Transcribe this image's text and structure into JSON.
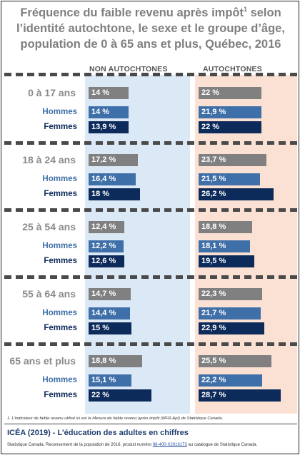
{
  "header": {
    "title_line1": "Fréquence du faible revenu après impôt",
    "title_sup": "1",
    "title_line1_end": " selon",
    "title_line2": "l’identité autochtone, le sexe et le groupe d’âge,",
    "title_line3": "population de 0 à 65 ans et plus, Québec, 2016"
  },
  "columns": {
    "non_autochtones": "NON AUTOCHTONES",
    "autochtones": "AUTOCHTONES"
  },
  "colors": {
    "total": "#808080",
    "hommes": "#3f6fa8",
    "femmes": "#0c2a5a",
    "band_non": "#dbe8f5",
    "band_aut": "#fbe1d3"
  },
  "chart_data": {
    "type": "bar",
    "categories": [
      "0 à 17 ans",
      "18 à 24 ans",
      "25 à 54 ans",
      "55 à 64 ans",
      "65 ans et plus"
    ],
    "row_labels": [
      "",
      "Hommes",
      "Femmes"
    ],
    "xlim": [
      0,
      30
    ],
    "groups": [
      {
        "label": "0 à 17 ans",
        "non_autochtones": [
          {
            "value": 14,
            "label": "14 %"
          },
          {
            "value": 14,
            "label": "14 %"
          },
          {
            "value": 13.9,
            "label": "13,9 %"
          }
        ],
        "autochtones": [
          {
            "value": 22,
            "label": "22 %"
          },
          {
            "value": 21.9,
            "label": "21,9 %"
          },
          {
            "value": 22,
            "label": "22 %"
          }
        ]
      },
      {
        "label": "18 à 24 ans",
        "non_autochtones": [
          {
            "value": 17.2,
            "label": "17,2 %"
          },
          {
            "value": 16.4,
            "label": "16,4 %"
          },
          {
            "value": 18,
            "label": "18 %"
          }
        ],
        "autochtones": [
          {
            "value": 23.7,
            "label": "23,7 %"
          },
          {
            "value": 21.5,
            "label": "21,5 %"
          },
          {
            "value": 26.2,
            "label": "26,2 %"
          }
        ]
      },
      {
        "label": "25 à 54 ans",
        "non_autochtones": [
          {
            "value": 12.4,
            "label": "12,4 %"
          },
          {
            "value": 12.2,
            "label": "12,2 %"
          },
          {
            "value": 12.6,
            "label": "12,6 %"
          }
        ],
        "autochtones": [
          {
            "value": 18.8,
            "label": "18,8 %"
          },
          {
            "value": 18.1,
            "label": "18,1 %"
          },
          {
            "value": 19.5,
            "label": "19,5 %"
          }
        ]
      },
      {
        "label": "55 à 64 ans",
        "non_autochtones": [
          {
            "value": 14.7,
            "label": "14,7 %"
          },
          {
            "value": 14.4,
            "label": "14,4 %"
          },
          {
            "value": 15,
            "label": "15 %"
          }
        ],
        "autochtones": [
          {
            "value": 22.3,
            "label": "22,3 %"
          },
          {
            "value": 21.7,
            "label": "21,7 %"
          },
          {
            "value": 22.9,
            "label": "22,9 %"
          }
        ]
      },
      {
        "label": "65 ans et plus",
        "non_autochtones": [
          {
            "value": 18.8,
            "label": "18,8 %"
          },
          {
            "value": 15.1,
            "label": "15,1 %"
          },
          {
            "value": 22,
            "label": "22 %"
          }
        ],
        "autochtones": [
          {
            "value": 25.5,
            "label": "25,5 %"
          },
          {
            "value": 22.2,
            "label": "22,2 %"
          },
          {
            "value": 28.7,
            "label": "28,7 %"
          }
        ]
      }
    ]
  },
  "footer": {
    "footnote": "1. L’indicateur de faible revenu utilisé ici est la Mesure de faible revenu après impôt (MFR-ApI) de Statistique Canada.",
    "org": "ICÉA (2019) - L’éducation des adultes en chiffres",
    "source_pre": "Statistique Canada, Recensement de la population de 2016, produit numéro ",
    "source_link": "98-400-X2016173",
    "source_post": " au catalogue de Statistique Canada."
  }
}
